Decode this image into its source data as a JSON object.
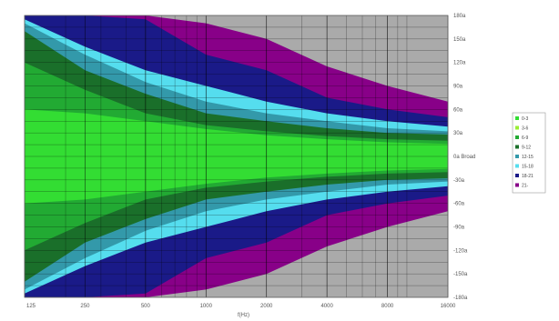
{
  "chart_data": {
    "type": "heatmap",
    "title": "",
    "xlabel": "f(Hz)",
    "ylabel": "",
    "x_scale": "log",
    "xlim": [
      125,
      16000
    ],
    "ylim": [
      -180,
      180
    ],
    "x_ticks": [
      125,
      250,
      500,
      1000,
      2000,
      4000,
      8000,
      16000
    ],
    "x_tick_labels": [
      "125",
      "250",
      "500",
      "1000",
      "2000",
      "4000",
      "8000",
      "16000"
    ],
    "y_ticks": [
      180,
      150,
      120,
      90,
      60,
      30,
      0,
      -30,
      -60,
      -90,
      -120,
      -150,
      -180
    ],
    "y_tick_labels": [
      "180a",
      "150a",
      "120a",
      "90a",
      "60a",
      "30a",
      "0a Broad",
      "-30a",
      "-60a",
      "-90a",
      "-120a",
      "-150a",
      "-180a"
    ],
    "grid": true,
    "legend_position": "right",
    "legend": [
      {
        "label": "0-3",
        "color": "#33dd33"
      },
      {
        "label": "3-6",
        "color": "#99ee33"
      },
      {
        "label": "6-9",
        "color": "#22aa33"
      },
      {
        "label": "9-12",
        "color": "#1a6f2a"
      },
      {
        "label": "12-15",
        "color": "#3399aa"
      },
      {
        "label": "15-18",
        "color": "#55ddee"
      },
      {
        "label": "18-21",
        "color": "#1a1a88"
      },
      {
        "label": "21-",
        "color": "#880088"
      }
    ],
    "contour_bands": [
      {
        "name": "21-",
        "color": "#880088",
        "half_width_deg": [
          180,
          180,
          180,
          170,
          150,
          115,
          90,
          70
        ]
      },
      {
        "name": "18-21",
        "color": "#1a1a88",
        "half_width_deg": [
          180,
          180,
          175,
          130,
          110,
          75,
          60,
          50
        ]
      },
      {
        "name": "15-18",
        "color": "#55ddee",
        "half_width_deg": [
          175,
          140,
          110,
          90,
          70,
          55,
          45,
          38
        ]
      },
      {
        "name": "12-15",
        "color": "#3399aa",
        "half_width_deg": [
          170,
          130,
          95,
          70,
          55,
          45,
          36,
          32
        ]
      },
      {
        "name": "9-12",
        "color": "#1a6f2a",
        "half_width_deg": [
          160,
          110,
          80,
          55,
          45,
          36,
          30,
          28
        ]
      },
      {
        "name": "6-9",
        "color": "#22aa33",
        "half_width_deg": [
          120,
          85,
          55,
          40,
          32,
          26,
          22,
          20
        ]
      },
      {
        "name": "0-3",
        "color": "#33dd33",
        "half_width_deg": [
          60,
          55,
          45,
          35,
          27,
          22,
          18,
          16
        ]
      }
    ]
  }
}
